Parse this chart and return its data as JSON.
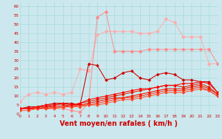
{
  "background_color": "#cce8ee",
  "grid_color": "#aadddd",
  "xlabel": "Vent moyen/en rafales ( km/h )",
  "xlabel_color": "#cc0000",
  "xlabel_fontsize": 7,
  "tick_color": "#cc0000",
  "ylim": [
    0,
    62
  ],
  "xlim": [
    0,
    23
  ],
  "yticks": [
    0,
    5,
    10,
    15,
    20,
    25,
    30,
    35,
    40,
    45,
    50,
    55,
    60
  ],
  "xticks": [
    0,
    1,
    2,
    3,
    4,
    5,
    6,
    7,
    8,
    9,
    10,
    11,
    12,
    13,
    14,
    15,
    16,
    17,
    18,
    19,
    20,
    21,
    22,
    23
  ],
  "series": [
    {
      "x": [
        0,
        1,
        2,
        3,
        4,
        5,
        6,
        7,
        8,
        9,
        10,
        11,
        12,
        13,
        14,
        15,
        16,
        17,
        18,
        19,
        20,
        21,
        22,
        23
      ],
      "y": [
        7,
        11,
        12,
        11,
        12,
        11,
        12,
        25,
        24,
        44,
        46,
        46,
        46,
        46,
        45,
        45,
        46,
        53,
        51,
        43,
        43,
        43,
        28,
        28
      ],
      "color": "#ffaaaa",
      "marker": "P",
      "linewidth": 0.7,
      "markersize": 3,
      "linestyle": "-"
    },
    {
      "x": [
        0,
        1,
        2,
        3,
        4,
        5,
        6,
        7,
        8,
        9,
        10,
        11,
        12,
        13,
        14,
        15,
        16,
        17,
        18,
        19,
        20,
        21,
        22,
        23
      ],
      "y": [
        3,
        3,
        3,
        3,
        3,
        3,
        2,
        1,
        6,
        54,
        57,
        35,
        35,
        35,
        35,
        36,
        36,
        36,
        36,
        36,
        36,
        36,
        36,
        28
      ],
      "color": "#ff8888",
      "marker": "P",
      "linewidth": 0.7,
      "markersize": 3,
      "linestyle": "-"
    },
    {
      "x": [
        0,
        1,
        2,
        3,
        4,
        5,
        6,
        7,
        8,
        9,
        10,
        11,
        12,
        13,
        14,
        15,
        16,
        17,
        18,
        19,
        20,
        21,
        22,
        23
      ],
      "y": [
        3,
        4,
        4,
        5,
        6,
        6,
        6,
        5,
        28,
        27,
        19,
        20,
        23,
        24,
        20,
        19,
        22,
        23,
        22,
        19,
        19,
        18,
        18,
        12
      ],
      "color": "#cc0000",
      "marker": "D",
      "linewidth": 0.8,
      "markersize": 2,
      "linestyle": "-"
    },
    {
      "x": [
        0,
        1,
        2,
        3,
        4,
        5,
        6,
        7,
        8,
        9,
        10,
        11,
        12,
        13,
        14,
        15,
        16,
        17,
        18,
        19,
        20,
        21,
        22,
        23
      ],
      "y": [
        3,
        3,
        4,
        4,
        5,
        5,
        5,
        6,
        7,
        8,
        9,
        10,
        11,
        12,
        13,
        14,
        15,
        16,
        16,
        15,
        16,
        17,
        15,
        11
      ],
      "color": "#dd2200",
      "marker": "D",
      "linewidth": 0.8,
      "markersize": 2,
      "linestyle": "-"
    },
    {
      "x": [
        0,
        1,
        2,
        3,
        4,
        5,
        6,
        7,
        8,
        9,
        10,
        11,
        12,
        13,
        14,
        15,
        16,
        17,
        18,
        19,
        20,
        21,
        22,
        23
      ],
      "y": [
        3,
        3,
        3,
        4,
        4,
        4,
        5,
        5,
        6,
        7,
        8,
        9,
        9,
        10,
        11,
        12,
        13,
        14,
        14,
        14,
        15,
        16,
        14,
        11
      ],
      "color": "#ee1100",
      "marker": "D",
      "linewidth": 0.8,
      "markersize": 2,
      "linestyle": "-"
    },
    {
      "x": [
        0,
        1,
        2,
        3,
        4,
        5,
        6,
        7,
        8,
        9,
        10,
        11,
        12,
        13,
        14,
        15,
        16,
        17,
        18,
        19,
        20,
        21,
        22,
        23
      ],
      "y": [
        3,
        3,
        3,
        3,
        4,
        4,
        4,
        5,
        5,
        6,
        7,
        8,
        9,
        9,
        10,
        11,
        12,
        13,
        13,
        13,
        14,
        15,
        13,
        10
      ],
      "color": "#ff2200",
      "marker": "D",
      "linewidth": 0.7,
      "markersize": 2,
      "linestyle": "-"
    },
    {
      "x": [
        0,
        1,
        2,
        3,
        4,
        5,
        6,
        7,
        8,
        9,
        10,
        11,
        12,
        13,
        14,
        15,
        16,
        17,
        18,
        19,
        20,
        21,
        22,
        23
      ],
      "y": [
        2,
        2,
        3,
        3,
        3,
        4,
        4,
        4,
        5,
        5,
        6,
        7,
        8,
        8,
        9,
        10,
        11,
        12,
        12,
        12,
        13,
        14,
        13,
        10
      ],
      "color": "#ff4422",
      "marker": "D",
      "linewidth": 0.7,
      "markersize": 2,
      "linestyle": "-"
    },
    {
      "x": [
        0,
        1,
        2,
        3,
        4,
        5,
        6,
        7,
        8,
        9,
        10,
        11,
        12,
        13,
        14,
        15,
        16,
        17,
        18,
        19,
        20,
        21,
        22,
        23
      ],
      "y": [
        3,
        3,
        4,
        5,
        5,
        6,
        5,
        6,
        8,
        9,
        10,
        11,
        12,
        13,
        14,
        14,
        15,
        16,
        16,
        17,
        17,
        18,
        17,
        12
      ],
      "color": "#ff0000",
      "marker": "D",
      "linewidth": 0.8,
      "markersize": 2,
      "linestyle": "-"
    }
  ]
}
